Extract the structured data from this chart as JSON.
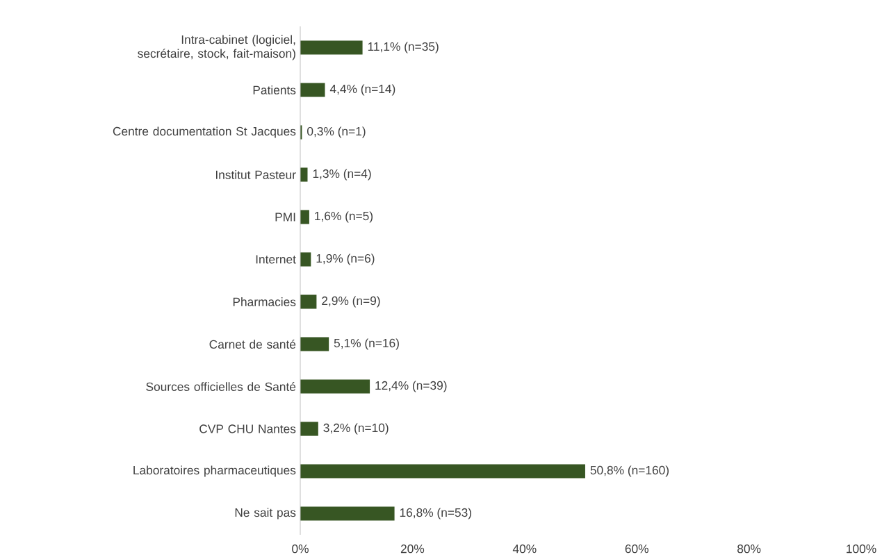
{
  "chart_data": {
    "type": "bar",
    "orientation": "horizontal",
    "categories": [
      "Intra-cabinet (logiciel, secrétaire, stock, fait-maison)",
      "Patients",
      "Centre documentation St Jacques",
      "Institut Pasteur",
      "PMI",
      "Internet",
      "Pharmacies",
      "Carnet de santé",
      "Sources officielles de Santé",
      "CVP CHU Nantes",
      "Laboratoires pharmaceutiques",
      "Ne sait pas"
    ],
    "values": [
      11.1,
      4.4,
      0.3,
      1.3,
      1.6,
      1.9,
      2.9,
      5.1,
      12.4,
      3.2,
      50.8,
      16.8
    ],
    "value_labels": [
      "11,1% (n=35)",
      "4,4% (n=14)",
      "0,3% (n=1)",
      "1,3% (n=4)",
      "1,6% (n=5)",
      "1,9% (n=6)",
      "2,9% (n=9)",
      "5,1% (n=16)",
      "12,4% (n=39)",
      "3,2% (n=10)",
      "50,8% (n=160)",
      "16,8% (n=53)"
    ],
    "color": "#375623",
    "xlim": [
      0,
      100
    ],
    "xticks": [
      {
        "value": 0,
        "label": "0%"
      },
      {
        "value": 20,
        "label": "20%"
      },
      {
        "value": 40,
        "label": "40%"
      },
      {
        "value": 60,
        "label": "60%"
      },
      {
        "value": 80,
        "label": "80%"
      },
      {
        "value": 100,
        "label": "100%"
      }
    ],
    "grid": false
  }
}
